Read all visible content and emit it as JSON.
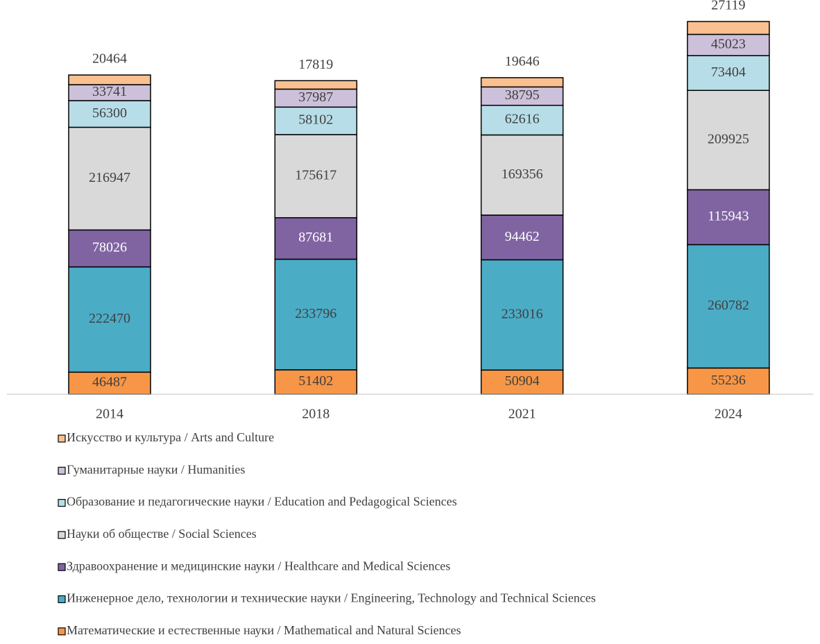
{
  "chart_data": {
    "type": "stacked_bar",
    "categories": [
      "2014",
      "2018",
      "2021",
      "2024"
    ],
    "series": [
      {
        "name": "Математические и естественные науки / Mathematical and Natural Sciences",
        "color": "#f79646",
        "values": [
          46487,
          51402,
          50904,
          55236
        ]
      },
      {
        "name": "Инженерное дело, технологии и технические науки / Engineering, Technology and Technical Sciences",
        "color": "#4bacc6",
        "values": [
          222470,
          233796,
          233016,
          260782
        ]
      },
      {
        "name": "Здравоохранение и медицинские науки / Healthcare and Medical Sciences",
        "color": "#8064a2",
        "values": [
          78026,
          87681,
          94462,
          115943
        ]
      },
      {
        "name": "Науки об обществе / Social Sciences",
        "color": "#d9d9d9",
        "values": [
          216947,
          175617,
          169356,
          209925
        ]
      },
      {
        "name": "Образование и педагогические науки / Education and Pedagogical Sciences",
        "color": "#b7dee8",
        "values": [
          56300,
          58102,
          62616,
          73404
        ]
      },
      {
        "name": "Гуманитарные науки / Humanities",
        "color": "#ccc0da",
        "values": [
          33741,
          37987,
          38795,
          45023
        ]
      },
      {
        "name": "Искусство и культура / Arts and Culture",
        "color": "#fac090",
        "values": [
          20464,
          17819,
          19646,
          27119
        ]
      }
    ],
    "legend": "bottom-left"
  }
}
